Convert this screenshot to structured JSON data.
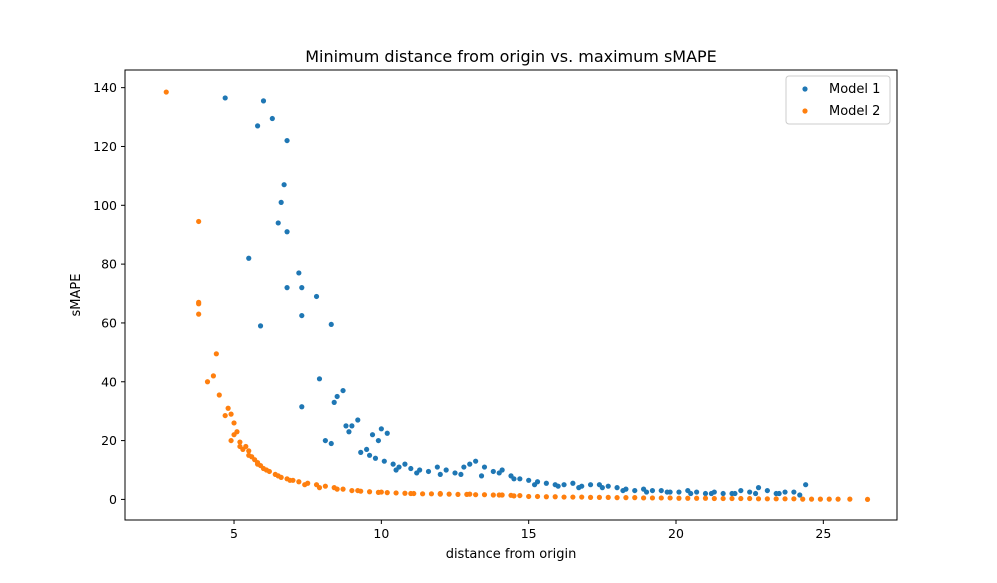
{
  "chart_data": {
    "type": "scatter",
    "title": "Minimum distance from origin vs. maximum sMAPE",
    "xlabel": "distance from origin",
    "ylabel": "sMAPE",
    "xlim": [
      1.3,
      27.5
    ],
    "ylim": [
      -7,
      146
    ],
    "xticks": [
      5,
      10,
      15,
      20,
      25
    ],
    "yticks": [
      0,
      20,
      40,
      60,
      80,
      100,
      120,
      140
    ],
    "grid": false,
    "legend": "top-right",
    "series": [
      {
        "name": "Model 1",
        "color": "#1f77b4",
        "x": [
          4.7,
          6.0,
          6.3,
          5.8,
          6.8,
          6.7,
          6.6,
          6.5,
          6.8,
          5.5,
          7.2,
          6.8,
          7.3,
          7.8,
          5.9,
          7.3,
          8.3,
          7.3,
          7.9,
          8.5,
          8.7,
          8.4,
          8.8,
          9.2,
          8.9,
          9.0,
          8.1,
          8.3,
          10.0,
          10.2,
          9.7,
          9.9,
          9.5,
          9.3,
          9.6,
          9.8,
          10.1,
          10.4,
          10.6,
          10.8,
          11.0,
          11.3,
          11.6,
          11.9,
          12.2,
          12.5,
          12.8,
          13.0,
          13.2,
          13.5,
          13.8,
          14.1,
          14.4,
          14.7,
          15.0,
          15.3,
          15.6,
          15.9,
          16.2,
          16.5,
          16.8,
          17.1,
          17.4,
          17.7,
          18.0,
          18.3,
          18.6,
          18.9,
          19.2,
          19.5,
          19.8,
          20.1,
          20.4,
          20.7,
          21.0,
          21.3,
          21.6,
          21.9,
          22.2,
          22.5,
          22.8,
          23.1,
          23.4,
          23.7,
          24.0,
          24.4,
          10.5,
          11.2,
          12.0,
          12.7,
          13.4,
          14.0,
          14.5,
          15.2,
          16.0,
          16.7,
          17.5,
          18.2,
          19.0,
          19.7,
          20.5,
          21.2,
          22.0,
          22.7,
          23.5,
          24.2
        ],
        "y": [
          136.5,
          135.5,
          129.5,
          127.0,
          122.0,
          107.0,
          101.0,
          94.0,
          91.0,
          82.0,
          77.0,
          72.0,
          72.0,
          69.0,
          59.0,
          62.5,
          59.5,
          31.5,
          41.0,
          35.0,
          37.0,
          33.0,
          25.0,
          27.0,
          23.0,
          25.0,
          20.0,
          19.0,
          24.0,
          22.5,
          22.0,
          20.0,
          17.0,
          16.0,
          15.0,
          14.0,
          13.0,
          12.0,
          11.0,
          12.0,
          10.5,
          10.0,
          9.5,
          11.0,
          10.0,
          9.0,
          11.0,
          12.0,
          13.0,
          11.0,
          9.5,
          10.0,
          8.0,
          7.0,
          6.5,
          6.0,
          5.5,
          5.0,
          5.0,
          5.5,
          4.5,
          5.0,
          5.0,
          4.5,
          4.0,
          3.5,
          3.0,
          3.5,
          3.0,
          3.0,
          2.5,
          2.5,
          3.0,
          2.5,
          2.0,
          2.5,
          2.0,
          2.0,
          3.0,
          2.5,
          4.0,
          3.0,
          2.0,
          2.5,
          2.5,
          5.0,
          10.0,
          9.0,
          8.5,
          8.5,
          8.0,
          9.0,
          7.0,
          5.0,
          4.5,
          4.0,
          4.0,
          3.0,
          2.5,
          2.5,
          2.0,
          2.0,
          2.0,
          2.0,
          2.0,
          1.5
        ]
      },
      {
        "name": "Model 2",
        "color": "#ff7f0e",
        "x": [
          2.7,
          3.8,
          3.8,
          3.8,
          3.8,
          4.4,
          4.3,
          4.5,
          4.1,
          4.7,
          4.8,
          4.9,
          5.0,
          5.0,
          5.1,
          5.2,
          5.3,
          5.4,
          5.5,
          5.6,
          5.7,
          5.8,
          5.9,
          6.0,
          6.2,
          6.4,
          6.6,
          6.8,
          7.0,
          7.2,
          7.5,
          7.8,
          8.1,
          8.4,
          8.7,
          9.0,
          9.3,
          9.6,
          9.9,
          10.2,
          10.5,
          10.8,
          11.1,
          11.4,
          11.7,
          12.0,
          12.3,
          12.6,
          12.9,
          13.2,
          13.5,
          13.8,
          14.1,
          14.4,
          14.7,
          15.0,
          15.3,
          15.6,
          15.9,
          16.2,
          16.5,
          16.8,
          17.1,
          17.4,
          17.7,
          18.0,
          18.3,
          18.6,
          18.9,
          19.2,
          19.5,
          19.8,
          20.1,
          20.4,
          20.7,
          21.0,
          21.3,
          21.6,
          21.9,
          22.2,
          22.5,
          22.8,
          23.1,
          23.4,
          23.7,
          24.0,
          24.3,
          24.6,
          24.9,
          25.2,
          25.5,
          25.9,
          26.5,
          4.9,
          5.2,
          5.5,
          5.8,
          6.1,
          6.5,
          6.9,
          7.4,
          7.9,
          8.5,
          9.2,
          10.0,
          11.0,
          12.0,
          13.0,
          14.0,
          14.5
        ],
        "y": [
          138.5,
          94.5,
          67.0,
          66.5,
          63.0,
          49.5,
          42.0,
          35.5,
          40.0,
          28.5,
          31.0,
          29.0,
          26.0,
          22.0,
          23.0,
          19.5,
          17.0,
          18.0,
          16.5,
          14.5,
          13.5,
          12.5,
          11.5,
          10.5,
          9.5,
          8.5,
          7.5,
          7.0,
          6.5,
          6.0,
          5.5,
          5.0,
          4.5,
          4.0,
          3.5,
          3.0,
          2.8,
          2.6,
          2.4,
          2.3,
          2.2,
          2.1,
          2.0,
          1.9,
          1.9,
          1.8,
          1.8,
          1.7,
          1.7,
          1.6,
          1.6,
          1.5,
          1.5,
          1.4,
          1.3,
          1.0,
          1.0,
          0.9,
          0.9,
          0.8,
          0.8,
          0.8,
          0.7,
          0.7,
          0.7,
          0.6,
          0.6,
          0.6,
          0.5,
          0.5,
          0.5,
          0.5,
          0.4,
          0.4,
          0.4,
          0.4,
          0.3,
          0.3,
          0.3,
          0.3,
          0.3,
          0.2,
          0.2,
          0.2,
          0.2,
          0.2,
          0.1,
          0.1,
          0.1,
          0.1,
          0.1,
          0.1,
          0.0,
          20.0,
          18.0,
          15.0,
          12.0,
          10.0,
          8.0,
          6.5,
          5.0,
          4.0,
          3.5,
          3.0,
          2.5,
          2.0,
          2.0,
          1.8,
          1.5,
          1.2
        ]
      }
    ]
  }
}
